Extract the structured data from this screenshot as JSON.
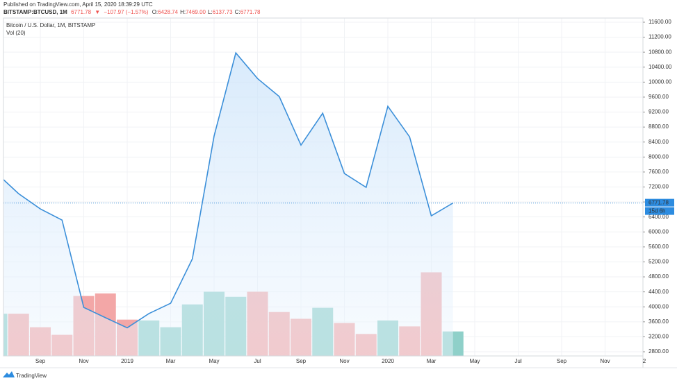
{
  "header": {
    "published": "Published on TradingView.com, April 15, 2020 18:39:29 UTC",
    "symbol": "BITSTAMP:BTCUSD, 1M",
    "arrow": "▼",
    "change": "−107.97 (−1.57%)",
    "ohlc": [
      {
        "label": "O:",
        "value": "6428.74"
      },
      {
        "label": "H:",
        "value": "7469.00"
      },
      {
        "label": "L:",
        "value": "6137.73"
      },
      {
        "label": "C:",
        "value": "6771.78"
      }
    ]
  },
  "chart_data": {
    "type": "area",
    "title": "Bitcoin / U.S. Dollar, 1M, BITSTAMP",
    "color": "#3b8fd9",
    "categories": [
      null,
      null,
      "Sep",
      null,
      "Nov",
      null,
      "2019",
      null,
      "Mar",
      null,
      "May",
      null,
      "Jul",
      null,
      "Sep",
      null,
      "Nov",
      null,
      "2020",
      null,
      "Mar",
      null,
      "May",
      null,
      "Jul",
      null,
      "Sep",
      null,
      "Nov",
      null,
      "2"
    ],
    "values": [
      7560,
      7022,
      6615,
      6318,
      3985,
      3710,
      3440,
      3820,
      4096,
      5281,
      8560,
      10780,
      10096,
      9615,
      8318,
      9170,
      7560,
      7190,
      9355,
      8540,
      6430,
      6771.78,
      null,
      null,
      null,
      null,
      null,
      null,
      null,
      null,
      null
    ],
    "countdown": "15d 6h",
    "volume": {
      "name": "Vol (20)",
      "up_color": "#8fd0c9",
      "down_color": "#f3a7a7",
      "ylim": [
        0,
        400
      ],
      "values": [
        50,
        50,
        34,
        25,
        71,
        74,
        43,
        42,
        34,
        61,
        76,
        70,
        76,
        52,
        44,
        57,
        39,
        26,
        42,
        35,
        99,
        29,
        null,
        null,
        null,
        null,
        null,
        null,
        null,
        null,
        null
      ]
    },
    "ylim": [
      2689,
      11711
    ],
    "yticks": [
      {
        "value": 2800,
        "label": "2800.00"
      },
      {
        "value": 3200,
        "label": "3200.00"
      },
      {
        "value": 3600,
        "label": "3600.00"
      },
      {
        "value": 4000,
        "label": "4000.00"
      },
      {
        "value": 4400,
        "label": "4400.00"
      },
      {
        "value": 4800,
        "label": "4800.00"
      },
      {
        "value": 5200,
        "label": "5200.00"
      },
      {
        "value": 5600,
        "label": "5600.00"
      },
      {
        "value": 6000,
        "label": "6000.00"
      },
      {
        "value": 6400,
        "label": "6400.00"
      },
      {
        "value": 6800,
        "label": "6800.00"
      },
      {
        "value": 7200,
        "label": "7200.00"
      },
      {
        "value": 7600,
        "label": "7600.00"
      },
      {
        "value": 8000,
        "label": "8000.00"
      },
      {
        "value": 8400,
        "label": "8400.00"
      },
      {
        "value": 8800,
        "label": "8800.00"
      },
      {
        "value": 9200,
        "label": "9200.00"
      },
      {
        "value": 9600,
        "label": "9600.00"
      },
      {
        "value": 10000,
        "label": "10000.00"
      },
      {
        "value": 10400,
        "label": "10400.00"
      },
      {
        "value": 10800,
        "label": "10800.00"
      },
      {
        "value": 11200,
        "label": "11200.00"
      },
      {
        "value": 11600,
        "label": "11600.00"
      }
    ],
    "grid": true
  },
  "footer": {
    "brand": "TradingView"
  }
}
